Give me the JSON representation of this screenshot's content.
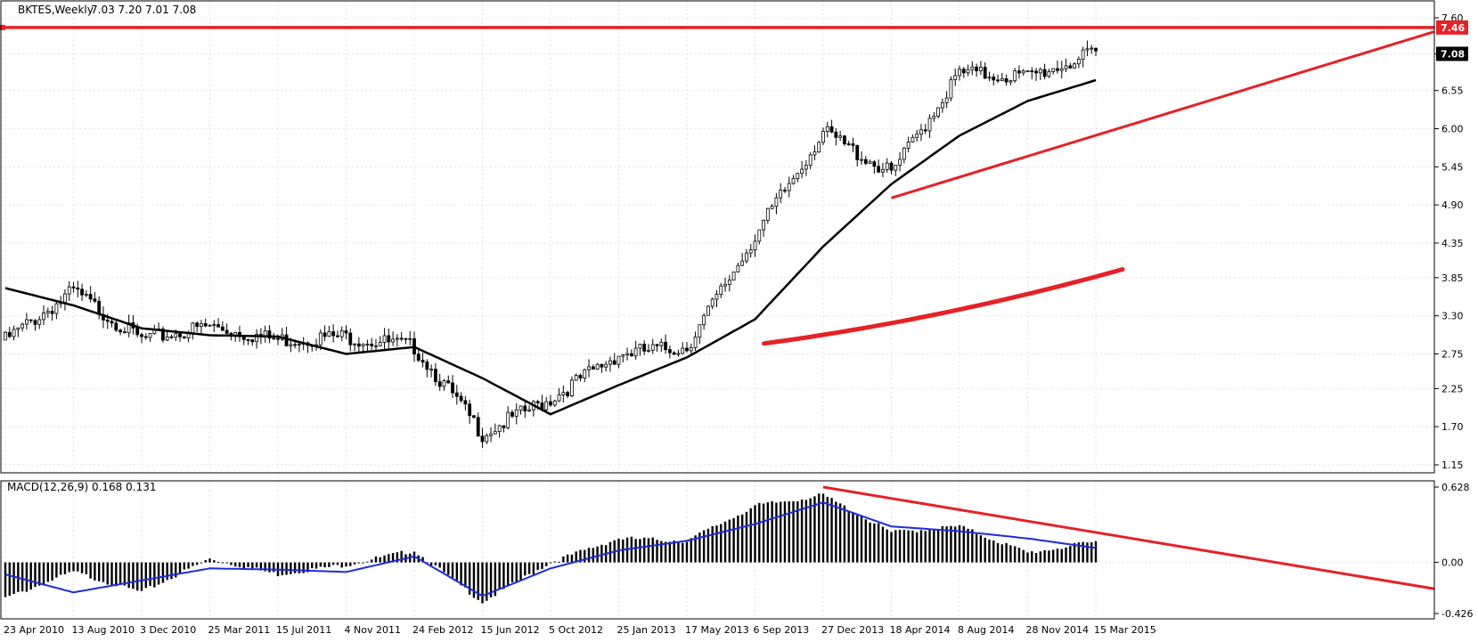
{
  "header": {
    "symbol_label": "BKTES,Weekly",
    "ohlc_label": "7.03 7.20 7.01 7.08"
  },
  "macd_panel": {
    "label": "MACD(12,26,9) 0.168 0.131"
  },
  "colors": {
    "background": "#ffffff",
    "grid": "#e3e3e3",
    "candle": "#000000",
    "moving_average": "#000000",
    "signal_line": "#1f2bd9",
    "annotation": "#e52226"
  },
  "chart_data": [
    {
      "type": "candlestick",
      "title": "BKTES,Weekly",
      "timeframe": "Weekly",
      "ohlc_last": {
        "open": 7.03,
        "high": 7.2,
        "low": 7.01,
        "close": 7.08
      },
      "x_tick_labels": [
        "23 Apr 2010",
        "13 Aug 2010",
        "3 Dec 2010",
        "25 Mar 2011",
        "15 Jul 2011",
        "4 Nov 2011",
        "24 Feb 2012",
        "15 Jun 2012",
        "5 Oct 2012",
        "25 Jan 2013",
        "17 May 2013",
        "6 Sep 2013",
        "27 Dec 2013",
        "18 Apr 2014",
        "8 Aug 2014",
        "28 Nov 2014",
        "15 Mar 2015"
      ],
      "y_ticks": [
        1.15,
        1.7,
        2.25,
        2.75,
        3.3,
        3.85,
        4.35,
        4.9,
        5.45,
        6.0,
        6.55,
        7.08,
        7.6
      ],
      "ylim": [
        1.15,
        7.6
      ],
      "grid": true,
      "price_labels": [
        {
          "value": 7.46,
          "label": "7.46",
          "style": "red"
        },
        {
          "value": 7.08,
          "label": "7.08",
          "style": "black"
        }
      ],
      "close_series_approx": {
        "x": [
          "23 Apr 2010",
          "13 Aug 2010",
          "3 Dec 2010",
          "25 Mar 2011",
          "15 Jul 2011",
          "4 Nov 2011",
          "24 Feb 2012",
          "15 Jun 2012",
          "5 Oct 2012",
          "25 Jan 2013",
          "17 May 2013",
          "6 Sep 2013",
          "27 Dec 2013",
          "18 Apr 2014",
          "8 Aug 2014",
          "28 Nov 2014",
          "15 Mar 2015"
        ],
        "values": [
          2.95,
          3.65,
          2.95,
          3.15,
          2.95,
          3.0,
          2.85,
          1.6,
          2.1,
          2.75,
          2.85,
          4.45,
          5.95,
          5.35,
          6.8,
          6.75,
          7.08
        ]
      },
      "moving_average_approx": {
        "x": [
          "23 Apr 2010",
          "13 Aug 2010",
          "3 Dec 2010",
          "25 Mar 2011",
          "15 Jul 2011",
          "4 Nov 2011",
          "24 Feb 2012",
          "15 Jun 2012",
          "5 Oct 2012",
          "25 Jan 2013",
          "17 May 2013",
          "6 Sep 2013",
          "27 Dec 2013",
          "18 Apr 2014",
          "8 Aug 2014",
          "28 Nov 2014",
          "15 Mar 2015"
        ],
        "values": [
          3.7,
          3.45,
          3.12,
          3.02,
          3.0,
          2.75,
          2.85,
          2.4,
          1.88,
          2.3,
          2.7,
          3.25,
          4.3,
          5.2,
          5.9,
          6.4,
          6.7
        ]
      },
      "annotations": [
        {
          "kind": "horizontal_line",
          "value": 7.46
        },
        {
          "kind": "trendline",
          "from": {
            "x": "18 Apr 2014",
            "y": 5.0
          },
          "to": {
            "x": "right_edge",
            "y": 7.4
          }
        },
        {
          "kind": "freehand_arrow",
          "from": {
            "x": "6 Sep 2013",
            "y": 2.9
          },
          "to": {
            "x": "15 Mar 2015",
            "y": 3.97
          }
        }
      ]
    },
    {
      "type": "macd",
      "title": "MACD(12,26,9) 0.168 0.131",
      "params": [
        12,
        26,
        9
      ],
      "last_values": {
        "macd": 0.168,
        "signal": 0.131
      },
      "y_ticks": [
        0.628,
        0.0,
        -0.426
      ],
      "ylim": [
        -0.426,
        0.628
      ],
      "macd_histogram_approx": {
        "x": [
          "23 Apr 2010",
          "13 Aug 2010",
          "3 Dec 2010",
          "25 Mar 2011",
          "15 Jul 2011",
          "4 Nov 2011",
          "24 Feb 2012",
          "15 Jun 2012",
          "5 Oct 2012",
          "25 Jan 2013",
          "17 May 2013",
          "6 Sep 2013",
          "27 Dec 2013",
          "18 Apr 2014",
          "8 Aug 2014",
          "28 Nov 2014",
          "15 Mar 2015"
        ],
        "values": [
          -0.3,
          -0.08,
          -0.25,
          0.03,
          -0.1,
          -0.02,
          0.1,
          -0.33,
          0.0,
          0.2,
          0.18,
          0.47,
          0.56,
          0.25,
          0.3,
          0.08,
          0.17
        ]
      },
      "signal_series_approx": {
        "x": [
          "23 Apr 2010",
          "13 Aug 2010",
          "3 Dec 2010",
          "25 Mar 2011",
          "15 Jul 2011",
          "4 Nov 2011",
          "24 Feb 2012",
          "15 Jun 2012",
          "5 Oct 2012",
          "25 Jan 2013",
          "17 May 2013",
          "6 Sep 2013",
          "27 Dec 2013",
          "18 Apr 2014",
          "8 Aug 2014",
          "28 Nov 2014",
          "15 Mar 2015"
        ],
        "values": [
          -0.1,
          -0.25,
          -0.15,
          -0.05,
          -0.06,
          -0.08,
          0.05,
          -0.28,
          -0.05,
          0.1,
          0.18,
          0.32,
          0.5,
          0.3,
          0.26,
          0.2,
          0.12
        ]
      },
      "annotations": [
        {
          "kind": "trendline",
          "from": {
            "x": "27 Dec 2013",
            "y": 0.628
          },
          "to": {
            "x": "right_edge",
            "y": -0.22
          }
        }
      ]
    }
  ]
}
